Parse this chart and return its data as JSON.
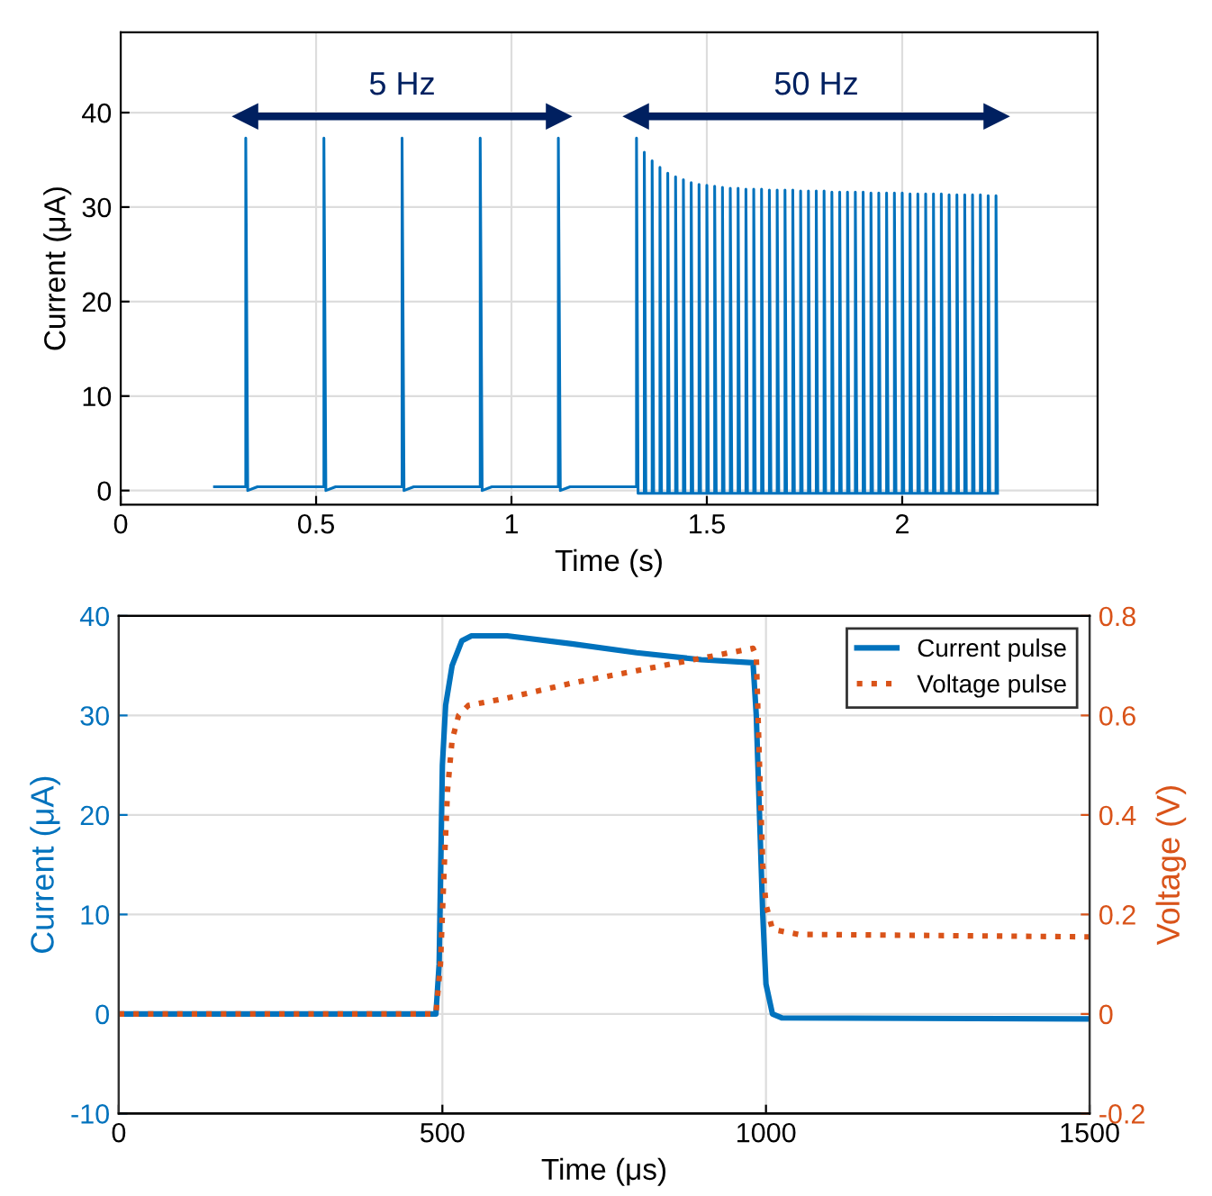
{
  "chart_data": [
    {
      "type": "line",
      "xlabel": "Time (s)",
      "ylabel": "Current (μA)",
      "xlim": [
        0,
        2.5
      ],
      "ylim": [
        -1.5,
        48.5
      ],
      "xticks": [
        0,
        0.5,
        1,
        1.5,
        2
      ],
      "yticks": [
        0,
        10,
        20,
        30,
        40
      ],
      "grid": true,
      "legend": false,
      "marker": "none",
      "line_style": "solid",
      "annotations": [
        {
          "text": "5 Hz",
          "x": 0.72,
          "y": 39.6
        },
        {
          "text": "50 Hz",
          "x": 1.78,
          "y": 39.6
        }
      ],
      "series": [
        {
          "color": "#002060",
          "marker": "triangle",
          "x": [
            0.32,
            1.12
          ],
          "values": [
            39.6,
            39.6
          ]
        },
        {
          "color": "#002060",
          "marker": "triangle",
          "x": [
            1.32,
            2.24
          ],
          "values": [
            39.6,
            39.6
          ]
        },
        {
          "color": "#0072bd",
          "x": [
            0.24,
            0.32,
            0.32,
            0.325,
            0.35,
            0.52,
            0.52,
            0.525,
            0.55,
            0.72,
            0.72,
            0.725,
            0.75,
            0.92,
            0.92,
            0.925,
            0.95,
            1.12,
            1.12,
            1.125,
            1.15,
            1.32,
            1.32,
            1.324,
            1.34,
            1.34,
            1.344,
            1.36,
            1.36,
            1.364,
            1.38,
            1.38,
            1.384,
            1.4,
            1.4,
            1.404,
            1.42,
            1.42,
            1.424,
            1.44,
            1.44,
            1.444,
            1.46,
            1.46,
            1.464,
            1.48,
            1.48,
            1.484,
            1.5,
            1.5,
            1.504,
            1.52,
            1.52,
            1.524,
            1.54,
            1.54,
            1.544,
            1.56,
            1.56,
            1.564,
            1.58,
            1.58,
            1.584,
            1.6,
            1.6,
            1.604,
            1.62,
            1.62,
            1.624,
            1.64,
            1.64,
            1.644,
            1.66,
            1.66,
            1.664,
            1.68,
            1.68,
            1.684,
            1.7,
            1.7,
            1.704,
            1.72,
            1.72,
            1.724,
            1.74,
            1.74,
            1.744,
            1.76,
            1.76,
            1.764,
            1.78,
            1.78,
            1.784,
            1.8,
            1.8,
            1.804,
            1.82,
            1.82,
            1.824,
            1.84,
            1.84,
            1.844,
            1.86,
            1.86,
            1.864,
            1.88,
            1.88,
            1.884,
            1.9,
            1.9,
            1.904,
            1.92,
            1.92,
            1.924,
            1.94,
            1.94,
            1.944,
            1.96,
            1.96,
            1.964,
            1.98,
            1.98,
            1.984,
            2.0,
            2.0,
            2.004,
            2.02,
            2.02,
            2.024,
            2.04,
            2.04,
            2.044,
            2.06,
            2.06,
            2.064,
            2.08,
            2.08,
            2.084,
            2.1,
            2.1,
            2.104,
            2.12,
            2.12,
            2.124,
            2.14,
            2.14,
            2.144,
            2.16,
            2.16,
            2.164,
            2.18,
            2.18,
            2.184,
            2.2,
            2.2,
            2.204,
            2.22,
            2.22,
            2.224,
            2.24,
            2.24,
            2.244
          ],
          "values": [
            0.4,
            0.4,
            37.3,
            0,
            0.4,
            0.4,
            37.3,
            0,
            0.4,
            0.4,
            37.3,
            0,
            0.4,
            0.4,
            37.3,
            0,
            0.4,
            0.4,
            37.3,
            0,
            0.4,
            0.4,
            37.3,
            -0.3,
            -0.3,
            35.8,
            -0.3,
            -0.3,
            34.9,
            -0.3,
            -0.3,
            34.2,
            -0.3,
            -0.3,
            33.6,
            -0.3,
            -0.3,
            33.2,
            -0.3,
            -0.3,
            32.9,
            -0.3,
            -0.3,
            32.6,
            -0.3,
            -0.3,
            32.4,
            -0.3,
            -0.3,
            32.3,
            -0.3,
            -0.3,
            32.2,
            -0.3,
            -0.3,
            32.1,
            -0.3,
            -0.3,
            32.0,
            -0.3,
            -0.3,
            32.0,
            -0.3,
            -0.3,
            31.9,
            -0.3,
            -0.3,
            31.9,
            -0.3,
            -0.3,
            31.9,
            -0.3,
            -0.3,
            31.8,
            -0.3,
            -0.3,
            31.8,
            -0.3,
            -0.3,
            31.8,
            -0.3,
            -0.3,
            31.8,
            -0.3,
            -0.3,
            31.7,
            -0.3,
            -0.3,
            31.7,
            -0.3,
            -0.3,
            31.7,
            -0.3,
            -0.3,
            31.7,
            -0.3,
            -0.3,
            31.6,
            -0.3,
            -0.3,
            31.6,
            -0.3,
            -0.3,
            31.6,
            -0.3,
            -0.3,
            31.6,
            -0.3,
            -0.3,
            31.6,
            -0.3,
            -0.3,
            31.5,
            -0.3,
            -0.3,
            31.5,
            -0.3,
            -0.3,
            31.5,
            -0.3,
            -0.3,
            31.5,
            -0.3,
            -0.3,
            31.5,
            -0.3,
            -0.3,
            31.4,
            -0.3,
            -0.3,
            31.4,
            -0.3,
            -0.3,
            31.4,
            -0.3,
            -0.3,
            31.4,
            -0.3,
            -0.3,
            31.4,
            -0.3,
            -0.3,
            31.3,
            -0.3,
            -0.3,
            31.3,
            -0.3,
            -0.3,
            31.3,
            -0.3,
            -0.3,
            31.3,
            -0.3,
            -0.3,
            31.3,
            -0.3,
            -0.3,
            31.2,
            -0.3,
            -0.3,
            31.2,
            -0.3
          ]
        }
      ]
    },
    {
      "type": "line",
      "xlabel": "Time (μs)",
      "ylabel": "Current (μA)",
      "y2label": "Voltage (V)",
      "xlim": [
        0,
        1500
      ],
      "ylim": [
        -10,
        40
      ],
      "y2lim": [
        -0.2,
        0.8
      ],
      "xticks": [
        0,
        500,
        1000,
        1500
      ],
      "yticks": [
        -10,
        0,
        10,
        20,
        30,
        40
      ],
      "y2ticks": [
        -0.2,
        0,
        0.2,
        0.4,
        0.6,
        0.8
      ],
      "grid": true,
      "legend": "top right",
      "marker": "none",
      "series": [
        {
          "name": "Current pulse",
          "color": "#0072bd",
          "line_style": "solid",
          "x": [
            0,
            490,
            495,
            500,
            505,
            515,
            530,
            545,
            600,
            700,
            800,
            900,
            980,
            985,
            990,
            995,
            1000,
            1010,
            1025,
            1500
          ],
          "values": [
            0,
            0,
            5,
            25,
            31,
            35,
            37.5,
            38,
            38,
            37.2,
            36.3,
            35.6,
            35.3,
            30,
            20,
            10,
            3,
            0,
            -0.4,
            -0.5
          ]
        },
        {
          "name": "Voltage pulse",
          "color": "#d95319",
          "line_style": "dotted",
          "axis": "y2",
          "x": [
            0,
            490,
            497,
            503,
            508,
            515,
            525,
            540,
            600,
            700,
            800,
            900,
            980,
            985,
            990,
            995,
            1000,
            1010,
            1050,
            1500
          ],
          "values": [
            0,
            0,
            0.1,
            0.3,
            0.45,
            0.55,
            0.6,
            0.62,
            0.635,
            0.665,
            0.69,
            0.715,
            0.735,
            0.72,
            0.5,
            0.3,
            0.22,
            0.17,
            0.16,
            0.155
          ]
        }
      ]
    }
  ]
}
